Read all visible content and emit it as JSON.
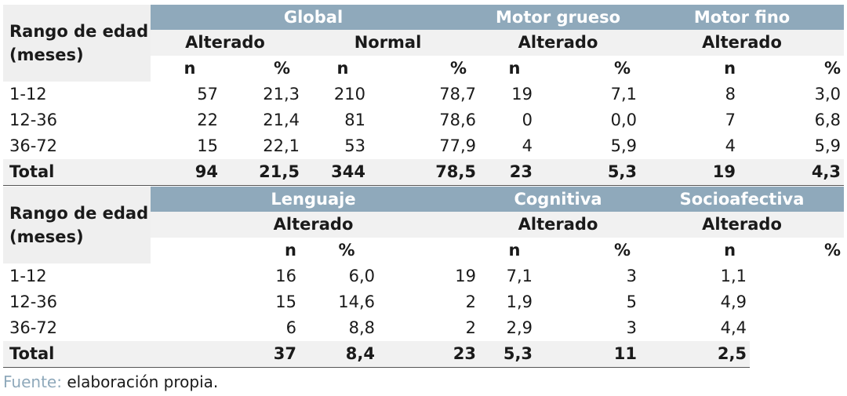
{
  "table1": {
    "row_header": "Rango de edad (meses)",
    "groups": [
      "Global",
      "Motor grueso",
      "Motor fino"
    ],
    "subgroups": [
      "Alterado",
      "Normal",
      "Alterado",
      "Alterado"
    ],
    "cols": [
      "n",
      "%",
      "n",
      "%",
      "n",
      "%",
      "n",
      "%"
    ],
    "rows": [
      [
        "1-12",
        "57",
        "21,3",
        "210",
        "78,7",
        "19",
        "7,1",
        "8",
        "3,0"
      ],
      [
        "12-36",
        "22",
        "21,4",
        "81",
        "78,6",
        "0",
        "0,0",
        "7",
        "6,8"
      ],
      [
        "36-72",
        "15",
        "22,1",
        "53",
        "77,9",
        "4",
        "5,9",
        "4",
        "5,9"
      ]
    ],
    "total": [
      "Total",
      "94",
      "21,5",
      "344",
      "78,5",
      "23",
      "5,3",
      "19",
      "4,3"
    ]
  },
  "table2": {
    "row_header": "Rango de edad (meses)",
    "groups": [
      "Lenguaje",
      "Cognitiva",
      "Socioafectiva"
    ],
    "subgroups": [
      "Alterado",
      "Alterado",
      "Alterado"
    ],
    "cols": [
      "n",
      "%",
      "n",
      "%",
      "n",
      "%"
    ],
    "rows": [
      [
        "1-12",
        "16",
        "6,0",
        "19",
        "7,1",
        "3",
        "1,1"
      ],
      [
        "12-36",
        "15",
        "14,6",
        "2",
        "1,9",
        "5",
        "4,9"
      ],
      [
        "36-72",
        "6",
        "8,8",
        "2",
        "2,9",
        "3",
        "4,4"
      ]
    ],
    "total": [
      "Total",
      "37",
      "8,4",
      "23",
      "5,3",
      "11",
      "2,5"
    ]
  },
  "source": {
    "label": "Fuente:",
    "text": "elaboración propia."
  }
}
